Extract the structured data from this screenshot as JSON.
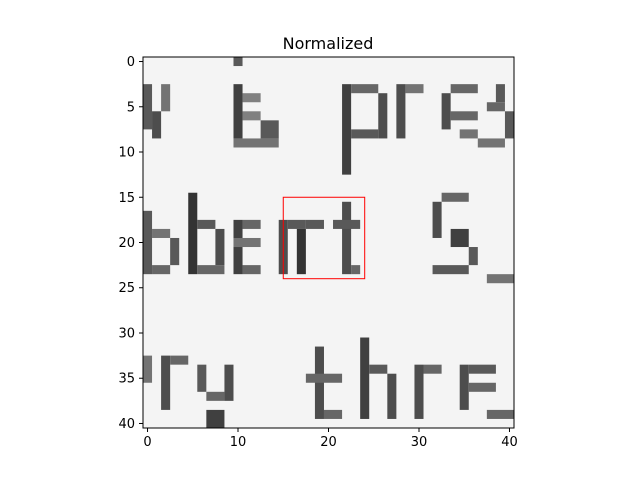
{
  "chart_data": {
    "type": "heatmap",
    "title": "Normalized",
    "xlabel": "",
    "ylabel": "",
    "grid_size": [
      41,
      41
    ],
    "xlim": [
      -0.5,
      40.5
    ],
    "ylim": [
      40.5,
      -0.5
    ],
    "y_inverted": true,
    "colormap": "gray",
    "value_range": [
      0,
      1
    ],
    "x_ticks": [
      0,
      10,
      20,
      30,
      40
    ],
    "y_ticks": [
      0,
      5,
      10,
      15,
      20,
      25,
      30,
      35,
      40
    ],
    "x_tick_labels": [
      "0",
      "10",
      "20",
      "30",
      "40"
    ],
    "y_tick_labels": [
      "0",
      "5",
      "10",
      "15",
      "20",
      "25",
      "30",
      "35",
      "40"
    ],
    "image_content": "grayscale crop of printed text: \"y is pres\" / \"bert S\" / \"ry thre\"",
    "highlight_box": {
      "x_range": [
        15,
        24
      ],
      "y_range": [
        15,
        24
      ],
      "color": "#ff0000"
    }
  }
}
